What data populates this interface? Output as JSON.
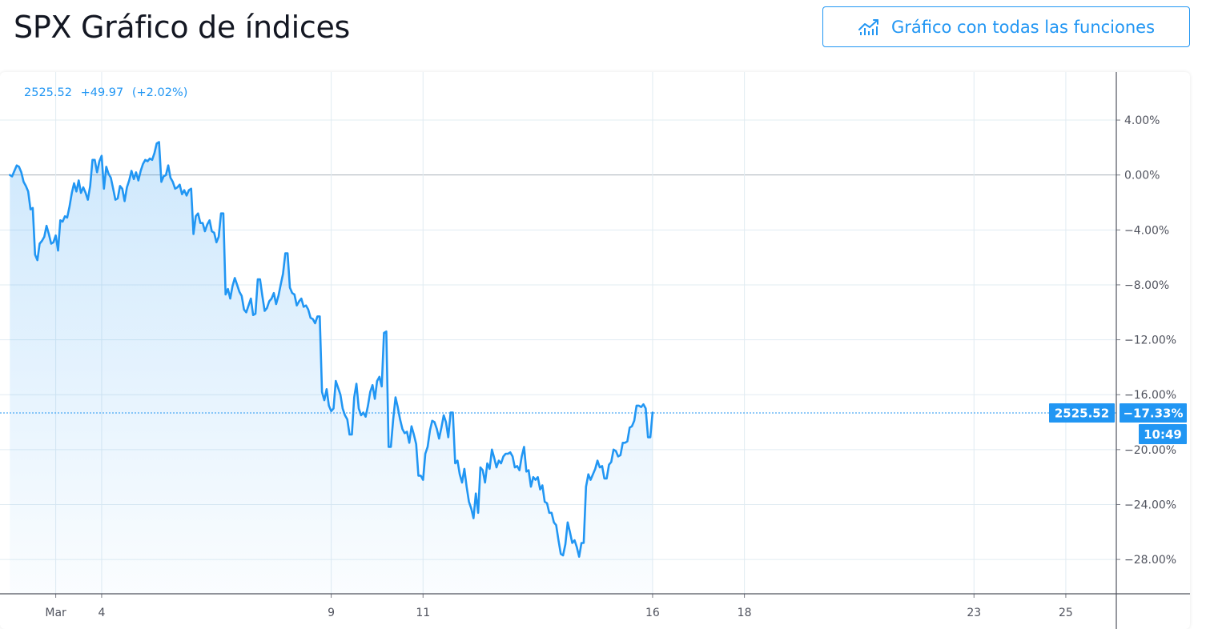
{
  "page": {
    "title": "SPX Gráfico de índices",
    "full_chart_button": {
      "label": "Gráfico con todas las funciones",
      "icon": "chart-line-icon"
    }
  },
  "legend": {
    "price": "2525.52",
    "change": "+49.97",
    "change_pct": "(+2.02%)"
  },
  "badges": {
    "price": "2525.52",
    "pct": "−17.33%",
    "time": "10:49"
  },
  "colors": {
    "accent": "#2196f3",
    "line": "#2196f3",
    "grid": "#e1ecf2",
    "text": "#131722"
  },
  "chart_data": {
    "type": "area",
    "title": "",
    "xlabel": "",
    "ylabel": "",
    "ylim": [
      -30.5,
      7.5
    ],
    "y_ticks": [
      {
        "v": 4,
        "label": "4.00%"
      },
      {
        "v": 0,
        "label": "0.00%"
      },
      {
        "v": -4,
        "label": "−4.00%"
      },
      {
        "v": -8,
        "label": "−8.00%"
      },
      {
        "v": -12,
        "label": "−12.00%"
      },
      {
        "v": -16,
        "label": "−16.00%"
      },
      {
        "v": -20,
        "label": "−20.00%"
      },
      {
        "v": -24,
        "label": "−24.00%"
      },
      {
        "v": -28,
        "label": "−28.00%"
      }
    ],
    "x_ticks": [
      {
        "t": 3.0,
        "label": "Mar"
      },
      {
        "t": 4.0,
        "label": "4"
      },
      {
        "t": 9.0,
        "label": "9"
      },
      {
        "t": 11.0,
        "label": "11"
      },
      {
        "t": 16.0,
        "label": "16"
      },
      {
        "t": 18.0,
        "label": "18"
      },
      {
        "t": 23.0,
        "label": "23"
      },
      {
        "t": 25.0,
        "label": "25"
      }
    ],
    "x_range": [
      2.1,
      26.1
    ],
    "grid": true,
    "current_value": -17.33,
    "series": [
      {
        "points": [
          [
            2.0,
            0.0
          ],
          [
            2.05,
            -0.1
          ],
          [
            2.1,
            0.3
          ],
          [
            2.15,
            0.7
          ],
          [
            2.2,
            0.6
          ],
          [
            2.25,
            0.2
          ],
          [
            2.3,
            -0.5
          ],
          [
            2.35,
            -0.8
          ],
          [
            2.4,
            -1.2
          ],
          [
            2.45,
            -2.5
          ],
          [
            2.5,
            -2.4
          ],
          [
            2.55,
            -5.8
          ],
          [
            2.6,
            -6.2
          ],
          [
            2.65,
            -5.0
          ],
          [
            2.7,
            -4.8
          ],
          [
            2.75,
            -4.5
          ],
          [
            2.8,
            -3.7
          ],
          [
            2.85,
            -4.3
          ],
          [
            2.9,
            -5.0
          ],
          [
            2.95,
            -4.9
          ],
          [
            3.0,
            -4.4
          ],
          [
            3.05,
            -5.5
          ],
          [
            3.1,
            -3.3
          ],
          [
            3.15,
            -3.4
          ],
          [
            3.2,
            -3.0
          ],
          [
            3.25,
            -3.1
          ],
          [
            3.3,
            -2.3
          ],
          [
            3.35,
            -1.3
          ],
          [
            3.4,
            -0.6
          ],
          [
            3.45,
            -1.2
          ],
          [
            3.5,
            -0.4
          ],
          [
            3.55,
            -1.3
          ],
          [
            3.6,
            -0.9
          ],
          [
            3.65,
            -1.3
          ],
          [
            3.7,
            -1.8
          ],
          [
            3.75,
            -0.8
          ],
          [
            3.8,
            1.1
          ],
          [
            3.85,
            1.1
          ],
          [
            3.9,
            0.2
          ],
          [
            3.95,
            1.0
          ],
          [
            4.0,
            1.4
          ],
          [
            4.05,
            -1.0
          ],
          [
            4.1,
            0.6
          ],
          [
            4.15,
            0.1
          ],
          [
            4.2,
            -0.2
          ],
          [
            4.25,
            -1.0
          ],
          [
            4.3,
            -1.8
          ],
          [
            4.35,
            -1.7
          ],
          [
            4.4,
            -0.8
          ],
          [
            4.45,
            -1.0
          ],
          [
            4.5,
            -1.9
          ],
          [
            4.55,
            -0.9
          ],
          [
            4.6,
            -0.4
          ],
          [
            4.65,
            0.3
          ],
          [
            4.7,
            -0.3
          ],
          [
            4.75,
            0.2
          ],
          [
            4.8,
            -0.4
          ],
          [
            4.85,
            0.3
          ],
          [
            4.9,
            0.8
          ],
          [
            4.95,
            1.1
          ],
          [
            5.0,
            1.0
          ],
          [
            5.05,
            1.2
          ],
          [
            5.1,
            1.1
          ],
          [
            5.15,
            1.6
          ],
          [
            5.2,
            2.3
          ],
          [
            5.25,
            2.4
          ],
          [
            5.3,
            -0.5
          ],
          [
            5.35,
            -0.1
          ],
          [
            5.4,
            0.0
          ],
          [
            5.45,
            0.7
          ],
          [
            5.5,
            -0.2
          ],
          [
            5.55,
            -0.5
          ],
          [
            5.6,
            -1.0
          ],
          [
            5.65,
            -0.9
          ],
          [
            5.7,
            -0.7
          ],
          [
            5.75,
            -1.4
          ],
          [
            5.8,
            -1.1
          ],
          [
            5.85,
            -1.5
          ],
          [
            5.9,
            -1.1
          ],
          [
            5.95,
            -1.0
          ],
          [
            6.0,
            -4.3
          ],
          [
            6.05,
            -3.0
          ],
          [
            6.1,
            -2.8
          ],
          [
            6.15,
            -3.5
          ],
          [
            6.2,
            -3.5
          ],
          [
            6.25,
            -4.1
          ],
          [
            6.3,
            -3.6
          ],
          [
            6.35,
            -3.3
          ],
          [
            6.4,
            -4.1
          ],
          [
            6.45,
            -4.2
          ],
          [
            6.5,
            -4.9
          ],
          [
            6.55,
            -4.5
          ],
          [
            6.6,
            -2.8
          ],
          [
            6.65,
            -2.8
          ],
          [
            6.7,
            -8.7
          ],
          [
            6.75,
            -8.3
          ],
          [
            6.8,
            -9.0
          ],
          [
            6.85,
            -8.1
          ],
          [
            6.9,
            -7.5
          ],
          [
            6.95,
            -8.0
          ],
          [
            7.0,
            -8.5
          ],
          [
            7.05,
            -8.8
          ],
          [
            7.1,
            -9.8
          ],
          [
            7.15,
            -10.0
          ],
          [
            7.2,
            -9.5
          ],
          [
            7.25,
            -9.0
          ],
          [
            7.3,
            -10.2
          ],
          [
            7.35,
            -10.1
          ],
          [
            7.4,
            -7.6
          ],
          [
            7.45,
            -7.6
          ],
          [
            7.5,
            -8.8
          ],
          [
            7.55,
            -9.9
          ],
          [
            7.6,
            -9.7
          ],
          [
            7.65,
            -9.2
          ],
          [
            7.7,
            -9.0
          ],
          [
            7.75,
            -8.6
          ],
          [
            7.8,
            -9.4
          ],
          [
            7.85,
            -8.8
          ],
          [
            7.9,
            -8.0
          ],
          [
            7.95,
            -7.2
          ],
          [
            8.0,
            -5.7
          ],
          [
            8.05,
            -5.7
          ],
          [
            8.1,
            -8.2
          ],
          [
            8.15,
            -8.6
          ],
          [
            8.2,
            -8.7
          ],
          [
            8.25,
            -9.5
          ],
          [
            8.3,
            -9.2
          ],
          [
            8.35,
            -9.0
          ],
          [
            8.4,
            -9.6
          ],
          [
            8.45,
            -9.5
          ],
          [
            8.5,
            -9.8
          ],
          [
            8.55,
            -10.4
          ],
          [
            8.6,
            -10.5
          ],
          [
            8.65,
            -10.8
          ],
          [
            8.7,
            -10.3
          ],
          [
            8.75,
            -10.3
          ],
          [
            8.8,
            -15.8
          ],
          [
            8.85,
            -16.4
          ],
          [
            8.9,
            -15.6
          ],
          [
            8.95,
            -16.8
          ],
          [
            9.0,
            -17.2
          ],
          [
            9.05,
            -17.0
          ],
          [
            9.1,
            -15.0
          ],
          [
            9.15,
            -15.5
          ],
          [
            9.2,
            -16.0
          ],
          [
            9.25,
            -17.0
          ],
          [
            9.3,
            -17.5
          ],
          [
            9.35,
            -17.8
          ],
          [
            9.4,
            -18.9
          ],
          [
            9.45,
            -18.9
          ],
          [
            9.5,
            -16.2
          ],
          [
            9.55,
            -15.2
          ],
          [
            9.6,
            -17.0
          ],
          [
            9.65,
            -17.5
          ],
          [
            9.7,
            -17.3
          ],
          [
            9.75,
            -17.6
          ],
          [
            9.8,
            -16.8
          ],
          [
            9.85,
            -15.8
          ],
          [
            9.9,
            -15.3
          ],
          [
            9.95,
            -16.3
          ],
          [
            10.0,
            -15.0
          ],
          [
            10.05,
            -14.7
          ],
          [
            10.1,
            -15.4
          ],
          [
            10.15,
            -11.5
          ],
          [
            10.2,
            -11.4
          ],
          [
            10.25,
            -19.8
          ],
          [
            10.3,
            -19.8
          ],
          [
            10.35,
            -17.8
          ],
          [
            10.4,
            -16.2
          ],
          [
            10.45,
            -16.9
          ],
          [
            10.5,
            -17.8
          ],
          [
            10.55,
            -18.5
          ],
          [
            10.6,
            -18.8
          ],
          [
            10.65,
            -18.7
          ],
          [
            10.7,
            -19.5
          ],
          [
            10.75,
            -18.3
          ],
          [
            10.8,
            -18.9
          ],
          [
            10.85,
            -19.6
          ],
          [
            10.9,
            -21.9
          ],
          [
            10.95,
            -21.9
          ],
          [
            11.0,
            -22.2
          ],
          [
            11.05,
            -20.3
          ],
          [
            11.1,
            -19.8
          ],
          [
            11.15,
            -18.6
          ],
          [
            11.2,
            -17.9
          ],
          [
            11.25,
            -18.0
          ],
          [
            11.3,
            -18.5
          ],
          [
            11.35,
            -19.2
          ],
          [
            11.4,
            -18.4
          ],
          [
            11.45,
            -17.5
          ],
          [
            11.5,
            -18.0
          ],
          [
            11.55,
            -19.1
          ],
          [
            11.6,
            -17.3
          ],
          [
            11.65,
            -17.3
          ],
          [
            11.7,
            -21.0
          ],
          [
            11.75,
            -20.8
          ],
          [
            11.8,
            -21.8
          ],
          [
            11.85,
            -22.4
          ],
          [
            11.9,
            -21.4
          ],
          [
            11.95,
            -22.7
          ],
          [
            12.0,
            -23.8
          ],
          [
            12.05,
            -24.3
          ],
          [
            12.1,
            -25.0
          ],
          [
            12.15,
            -23.2
          ],
          [
            12.2,
            -24.6
          ],
          [
            12.25,
            -21.3
          ],
          [
            12.3,
            -21.5
          ],
          [
            12.35,
            -22.4
          ],
          [
            12.4,
            -21.0
          ],
          [
            12.45,
            -21.4
          ],
          [
            12.5,
            -20.0
          ],
          [
            12.55,
            -20.6
          ],
          [
            12.6,
            -21.3
          ],
          [
            12.65,
            -20.8
          ],
          [
            12.7,
            -21.0
          ],
          [
            12.75,
            -20.5
          ],
          [
            12.8,
            -20.3
          ],
          [
            12.85,
            -20.3
          ],
          [
            12.9,
            -20.2
          ],
          [
            12.95,
            -20.5
          ],
          [
            13.0,
            -21.3
          ],
          [
            13.05,
            -21.2
          ],
          [
            13.1,
            -21.5
          ],
          [
            13.15,
            -20.5
          ],
          [
            13.2,
            -19.8
          ],
          [
            13.25,
            -21.6
          ],
          [
            13.3,
            -21.5
          ],
          [
            13.35,
            -22.7
          ],
          [
            13.4,
            -22.0
          ],
          [
            13.45,
            -22.2
          ],
          [
            13.5,
            -22.0
          ],
          [
            13.55,
            -22.9
          ],
          [
            13.6,
            -22.6
          ],
          [
            13.65,
            -23.8
          ],
          [
            13.7,
            -23.9
          ],
          [
            13.75,
            -24.6
          ],
          [
            13.8,
            -24.6
          ],
          [
            13.85,
            -25.3
          ],
          [
            13.9,
            -25.5
          ],
          [
            13.95,
            -26.6
          ],
          [
            14.0,
            -27.6
          ],
          [
            14.05,
            -27.7
          ],
          [
            14.1,
            -26.9
          ],
          [
            14.15,
            -25.3
          ],
          [
            14.2,
            -26.0
          ],
          [
            14.25,
            -26.8
          ],
          [
            14.3,
            -26.6
          ],
          [
            14.35,
            -27.1
          ],
          [
            14.4,
            -27.8
          ],
          [
            14.45,
            -26.8
          ],
          [
            14.5,
            -26.8
          ],
          [
            14.55,
            -22.7
          ],
          [
            14.6,
            -21.8
          ],
          [
            14.65,
            -22.2
          ],
          [
            14.7,
            -21.8
          ],
          [
            14.75,
            -21.4
          ],
          [
            14.8,
            -20.8
          ],
          [
            14.85,
            -21.3
          ],
          [
            14.9,
            -21.2
          ],
          [
            14.95,
            -22.1
          ],
          [
            15.0,
            -22.1
          ],
          [
            15.05,
            -21.1
          ],
          [
            15.1,
            -20.9
          ],
          [
            15.15,
            -20.0
          ],
          [
            15.2,
            -20.1
          ],
          [
            15.25,
            -20.5
          ],
          [
            15.3,
            -20.4
          ],
          [
            15.35,
            -19.5
          ],
          [
            15.4,
            -19.5
          ],
          [
            15.45,
            -19.4
          ],
          [
            15.5,
            -18.4
          ],
          [
            15.55,
            -18.3
          ],
          [
            15.6,
            -17.9
          ],
          [
            15.65,
            -16.8
          ],
          [
            15.7,
            -16.8
          ],
          [
            15.75,
            -16.9
          ],
          [
            15.8,
            -16.7
          ],
          [
            15.85,
            -17.0
          ],
          [
            15.9,
            -19.1
          ],
          [
            15.95,
            -19.1
          ],
          [
            16.0,
            -17.3
          ]
        ]
      }
    ]
  }
}
